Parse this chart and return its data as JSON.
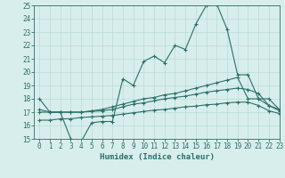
{
  "title": "",
  "xlabel": "Humidex (Indice chaleur)",
  "x": [
    0,
    1,
    2,
    3,
    4,
    5,
    6,
    7,
    8,
    9,
    10,
    11,
    12,
    13,
    14,
    15,
    16,
    17,
    18,
    19,
    20,
    21,
    22,
    23
  ],
  "line1": [
    18,
    17,
    17,
    15,
    14.8,
    16.2,
    16.3,
    16.3,
    19.5,
    19.0,
    20.8,
    21.2,
    20.7,
    22.0,
    21.7,
    23.6,
    25.0,
    25.1,
    23.2,
    19.8,
    19.8,
    18.0,
    18.0,
    17.2
  ],
  "line2": [
    17.2,
    17.0,
    17.0,
    17.0,
    17.0,
    17.1,
    17.2,
    17.4,
    17.6,
    17.8,
    18.0,
    18.1,
    18.3,
    18.4,
    18.6,
    18.8,
    19.0,
    19.2,
    19.4,
    19.6,
    18.0,
    18.0,
    17.5,
    17.2
  ],
  "line3": [
    17.0,
    17.0,
    17.0,
    17.0,
    17.0,
    17.05,
    17.1,
    17.2,
    17.4,
    17.6,
    17.7,
    17.85,
    18.0,
    18.1,
    18.2,
    18.35,
    18.5,
    18.6,
    18.7,
    18.8,
    18.7,
    18.4,
    17.5,
    17.1
  ],
  "line4": [
    16.4,
    16.4,
    16.5,
    16.5,
    16.6,
    16.65,
    16.7,
    16.75,
    16.85,
    16.95,
    17.05,
    17.15,
    17.2,
    17.3,
    17.4,
    17.45,
    17.55,
    17.6,
    17.7,
    17.75,
    17.75,
    17.5,
    17.1,
    16.9
  ],
  "color": "#2a6f6a",
  "bg_color": "#d8eeec",
  "grid_color": "#b8dcd8",
  "ylim": [
    15,
    25
  ],
  "xlim": [
    -0.5,
    23
  ],
  "yticks": [
    15,
    16,
    17,
    18,
    19,
    20,
    21,
    22,
    23,
    24,
    25
  ],
  "xticks": [
    0,
    1,
    2,
    3,
    4,
    5,
    6,
    7,
    8,
    9,
    10,
    11,
    12,
    13,
    14,
    15,
    16,
    17,
    18,
    19,
    20,
    21,
    22,
    23
  ],
  "tick_fontsize": 5.5,
  "xlabel_fontsize": 6.5
}
